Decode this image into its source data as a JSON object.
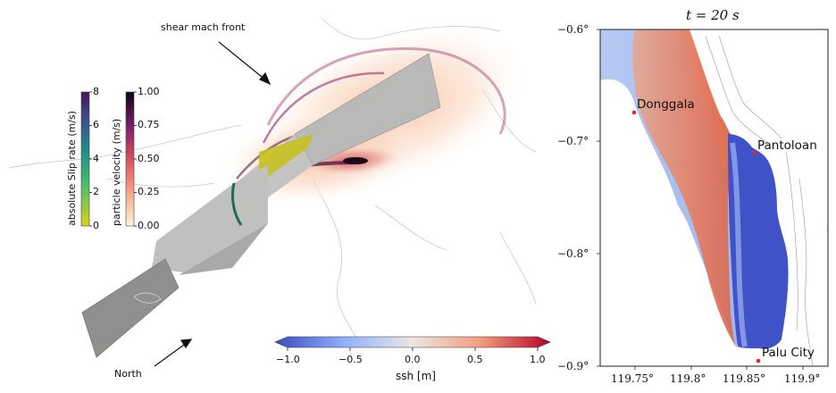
{
  "left_panel": {
    "annotation_top": "shear mach front",
    "annotation_bottom": "North",
    "slip_colorbar": {
      "title": "absolute Slip rate (m/s)",
      "ticks": [
        "8",
        "6",
        "4",
        "2",
        "0"
      ]
    },
    "velocity_colorbar": {
      "title": "particle velocity (m/s)",
      "ticks": [
        "1.00",
        "0.75",
        "0.50",
        "0.25",
        "0.00"
      ]
    },
    "ssh_colorbar": {
      "ticks": [
        "−1.0",
        "−0.5",
        "0.0",
        "0.5",
        "1.0"
      ],
      "label": "ssh [m]",
      "range": [
        -1.0,
        1.0
      ]
    }
  },
  "right_panel": {
    "title": "t = 20 s",
    "y_ticks": [
      "−0.6°",
      "−0.7°",
      "−0.8°",
      "−0.9°"
    ],
    "x_ticks": [
      "119.75°",
      "119.8°",
      "119.85°",
      "119.9°"
    ],
    "cities": [
      {
        "name": "Donggala"
      },
      {
        "name": "Pantoloan"
      },
      {
        "name": "Palu City"
      }
    ]
  },
  "colors": {
    "ssh_negative": "#3b4cc0",
    "ssh_positive": "#b40426",
    "city_marker": "#e8222a"
  }
}
